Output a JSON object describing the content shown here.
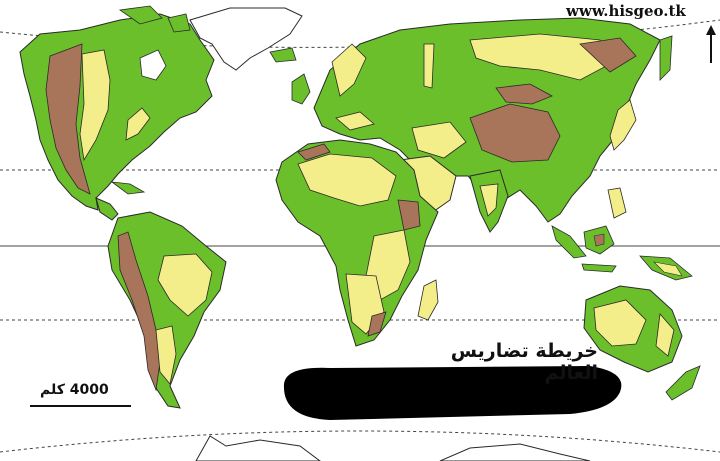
{
  "site_label": "www.hisgeo.tk",
  "map_title": "خريطة تضاريس العالم",
  "scale_label": "4000 كلم",
  "north_arrow_icon": "north-arrow-icon",
  "colors": {
    "lowland_green": "#6bbf2a",
    "hills_yellow": "#f4ee8a",
    "mountains_brown": "#a8745a",
    "ice_white": "#ffffff",
    "outline": "#2a2a2a",
    "redaction": "#000000"
  }
}
